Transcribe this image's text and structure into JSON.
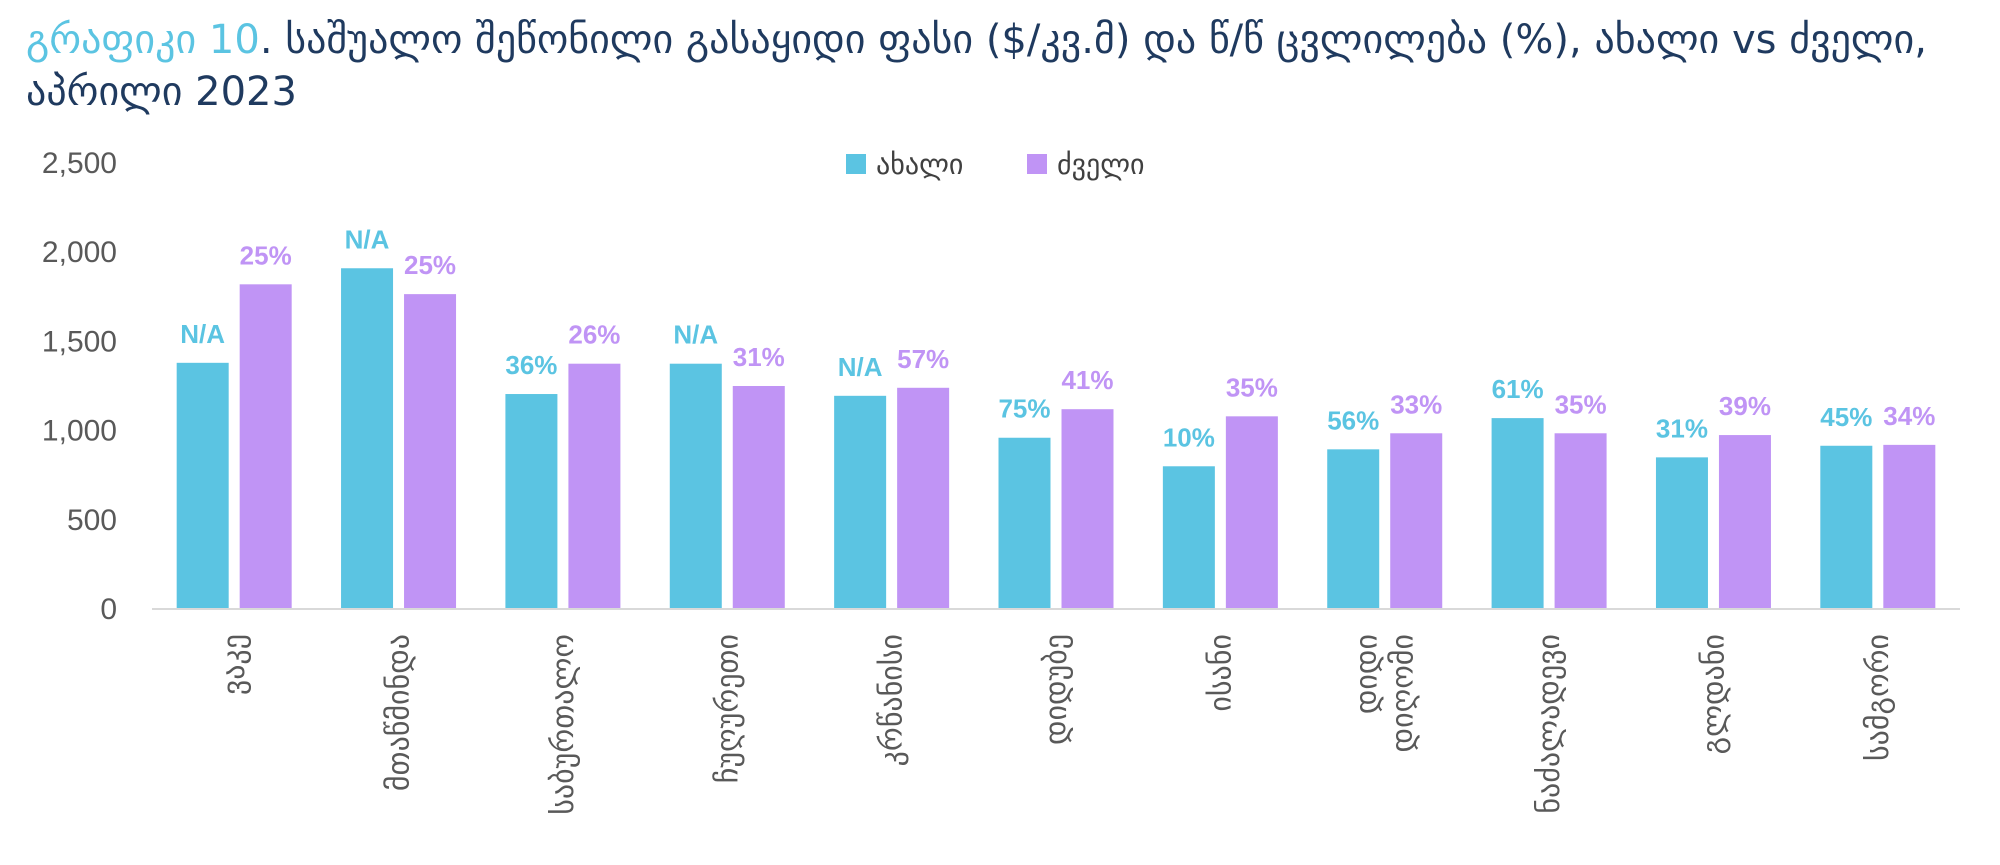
{
  "title": {
    "prefix": "გრაფიკი 10",
    "text": ". საშუალო შეწონილი გასაყიდი ფასი ($/კვ.მ) და წ/წ ცვლილება (%), ახალი vs ძველი, აპრილი 2023"
  },
  "colors": {
    "new": "#5bc4e2",
    "old": "#c094f5",
    "axis": "#d9d9d9",
    "text": "#595959"
  },
  "chart_data": {
    "type": "bar",
    "title": "გრაფიკი 10. საშუალო შეწონილი გასაყიდი ფასი ($/კვ.მ) და წ/წ ცვლილება (%), ახალი vs ძველი, აპრილი 2023",
    "categories": [
      [
        "ვაკე"
      ],
      [
        "მთაწმინდა"
      ],
      [
        "საბურთალო"
      ],
      [
        "ჩუღურეთი"
      ],
      [
        "კრწანისი"
      ],
      [
        "დიდუბე"
      ],
      [
        "ისანი"
      ],
      [
        "დიდი",
        "დიღომი"
      ],
      [
        "ნაძალადევი"
      ],
      [
        "გლდანი"
      ],
      [
        "სამგორი"
      ]
    ],
    "series": [
      {
        "name": "ახალი",
        "color": "#5bc4e2",
        "values": [
          1380,
          1910,
          1205,
          1375,
          1195,
          960,
          800,
          895,
          1070,
          850,
          915
        ],
        "labels": [
          "N/A",
          "N/A",
          "36%",
          "N/A",
          "N/A",
          "75%",
          "10%",
          "56%",
          "61%",
          "31%",
          "45%"
        ]
      },
      {
        "name": "ძველი",
        "color": "#c094f5",
        "values": [
          1820,
          1765,
          1375,
          1250,
          1240,
          1120,
          1080,
          985,
          985,
          975,
          920
        ],
        "labels": [
          "25%",
          "25%",
          "26%",
          "31%",
          "57%",
          "41%",
          "35%",
          "33%",
          "35%",
          "39%",
          "34%"
        ]
      }
    ],
    "yticks": [
      "0",
      "500",
      "1,000",
      "1,500",
      "2,000",
      "2,500"
    ],
    "ylim": [
      0,
      2500
    ],
    "grid": false,
    "legend": "top-center"
  }
}
